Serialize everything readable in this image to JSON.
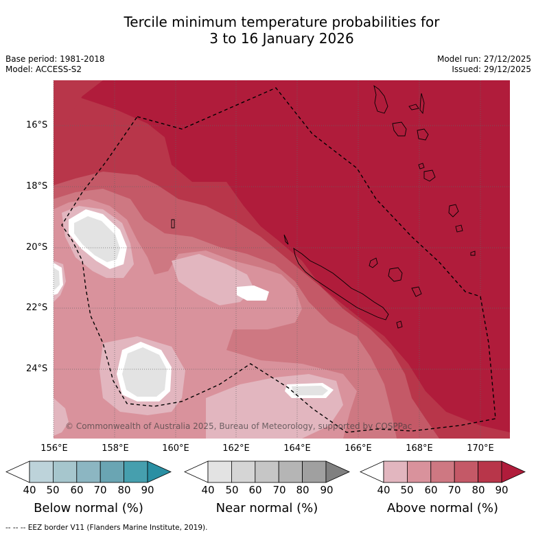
{
  "title": {
    "line1": "Tercile minimum temperature probabilities for",
    "line2": "3 to 16 January 2026"
  },
  "meta": {
    "base_period": "Base period: 1981-2018",
    "model": "Model: ACCESS-S2",
    "model_run": "Model run: 27/12/2025",
    "issued": "Issued: 29/12/2025"
  },
  "axes": {
    "lat_labels": [
      "16°S",
      "18°S",
      "20°S",
      "22°S",
      "24°S"
    ],
    "lon_labels": [
      "156°E",
      "158°E",
      "160°E",
      "162°E",
      "164°E",
      "166°E",
      "168°E",
      "170°E"
    ]
  },
  "copyright": "© Commonwealth of Australia 2025, Bureau of Meteorology, supported by COSPPac",
  "colorbars": [
    {
      "title": "Below normal (%)",
      "ticks": [
        "40",
        "50",
        "60",
        "70",
        "80",
        "90"
      ],
      "colors": [
        "#ffffff",
        "#bdd3da",
        "#a6c6cd",
        "#8cb6c2",
        "#6aa5b3",
        "#469fae",
        "#2a8fa3"
      ]
    },
    {
      "title": "Near normal (%)",
      "ticks": [
        "40",
        "50",
        "60",
        "70",
        "80",
        "90"
      ],
      "colors": [
        "#ffffff",
        "#e3e3e3",
        "#d5d5d5",
        "#c6c6c6",
        "#b5b5b5",
        "#a0a0a0",
        "#808080"
      ]
    },
    {
      "title": "Above normal (%)",
      "ticks": [
        "40",
        "50",
        "60",
        "70",
        "80",
        "90"
      ],
      "colors": [
        "#ffffff",
        "#e2b6bf",
        "#d9929c",
        "#ce7882",
        "#c45967",
        "#b8364a",
        "#b01c3b"
      ]
    }
  ],
  "footnote": "--  --  -- EEZ border V11 (Flanders Marine Institute, 2019).",
  "colors": {
    "above_90": "#b01c3b",
    "above_80": "#b8364a",
    "above_70": "#c45967",
    "above_60": "#ce7882",
    "above_50": "#d9929c",
    "above_40": "#e2b6bf",
    "near_40": "#e3e3e3"
  }
}
